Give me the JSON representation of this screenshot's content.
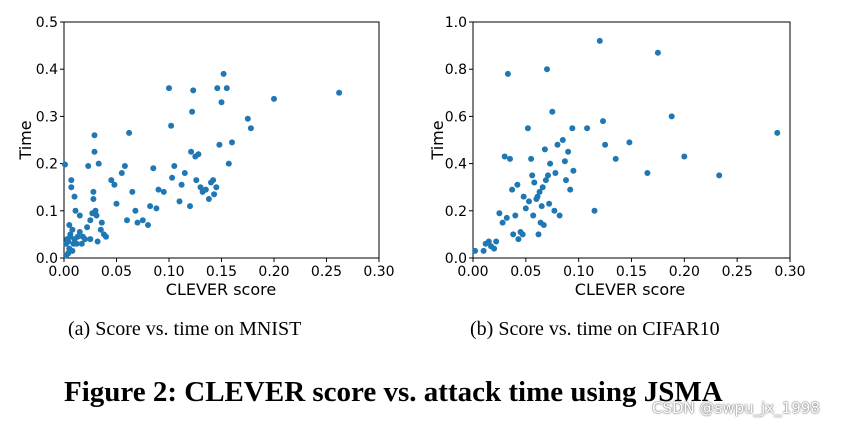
{
  "colors": {
    "points": "#1f77b4",
    "axes": "#000000"
  },
  "chart_data": [
    {
      "type": "scatter",
      "panel": "a",
      "title": "",
      "xlabel": "CLEVER score",
      "ylabel": "Time",
      "xlim": [
        0,
        0.3
      ],
      "ylim": [
        0,
        0.5
      ],
      "xticks": [
        "0.00",
        "0.05",
        "0.10",
        "0.15",
        "0.20",
        "0.25",
        "0.30"
      ],
      "yticks": [
        "0.0",
        "0.1",
        "0.2",
        "0.3",
        "0.4",
        "0.5"
      ],
      "points": [
        [
          0.001,
          0.198
        ],
        [
          0.002,
          0.005
        ],
        [
          0.003,
          0.04
        ],
        [
          0.004,
          0.035
        ],
        [
          0.005,
          0.07
        ],
        [
          0.005,
          0.02
        ],
        [
          0.006,
          0.05
        ],
        [
          0.006,
          0.045
        ],
        [
          0.007,
          0.15
        ],
        [
          0.007,
          0.165
        ],
        [
          0.008,
          0.06
        ],
        [
          0.008,
          0.015
        ],
        [
          0.009,
          0.03
        ],
        [
          0.01,
          0.04
        ],
        [
          0.01,
          0.13
        ],
        [
          0.011,
          0.1
        ],
        [
          0.012,
          0.03
        ],
        [
          0.013,
          0.045
        ],
        [
          0.015,
          0.055
        ],
        [
          0.015,
          0.09
        ],
        [
          0.017,
          0.03
        ],
        [
          0.018,
          0.045
        ],
        [
          0.02,
          0.04
        ],
        [
          0.002,
          0.03
        ],
        [
          0.004,
          0.01
        ],
        [
          0.022,
          0.065
        ],
        [
          0.023,
          0.195
        ],
        [
          0.025,
          0.08
        ],
        [
          0.025,
          0.04
        ],
        [
          0.027,
          0.095
        ],
        [
          0.028,
          0.125
        ],
        [
          0.028,
          0.14
        ],
        [
          0.029,
          0.26
        ],
        [
          0.029,
          0.225
        ],
        [
          0.03,
          0.1
        ],
        [
          0.031,
          0.09
        ],
        [
          0.032,
          0.035
        ],
        [
          0.033,
          0.2
        ],
        [
          0.035,
          0.06
        ],
        [
          0.036,
          0.075
        ],
        [
          0.038,
          0.05
        ],
        [
          0.04,
          0.045
        ],
        [
          0.045,
          0.165
        ],
        [
          0.048,
          0.155
        ],
        [
          0.05,
          0.115
        ],
        [
          0.055,
          0.18
        ],
        [
          0.058,
          0.195
        ],
        [
          0.06,
          0.08
        ],
        [
          0.062,
          0.265
        ],
        [
          0.065,
          0.14
        ],
        [
          0.068,
          0.1
        ],
        [
          0.07,
          0.075
        ],
        [
          0.075,
          0.08
        ],
        [
          0.08,
          0.07
        ],
        [
          0.082,
          0.11
        ],
        [
          0.085,
          0.19
        ],
        [
          0.088,
          0.105
        ],
        [
          0.09,
          0.145
        ],
        [
          0.095,
          0.14
        ],
        [
          0.1,
          0.36
        ],
        [
          0.102,
          0.28
        ],
        [
          0.103,
          0.17
        ],
        [
          0.105,
          0.195
        ],
        [
          0.11,
          0.12
        ],
        [
          0.112,
          0.155
        ],
        [
          0.115,
          0.18
        ],
        [
          0.12,
          0.11
        ],
        [
          0.121,
          0.225
        ],
        [
          0.122,
          0.31
        ],
        [
          0.123,
          0.355
        ],
        [
          0.125,
          0.215
        ],
        [
          0.126,
          0.165
        ],
        [
          0.128,
          0.22
        ],
        [
          0.13,
          0.15
        ],
        [
          0.132,
          0.14
        ],
        [
          0.135,
          0.145
        ],
        [
          0.138,
          0.125
        ],
        [
          0.14,
          0.16
        ],
        [
          0.142,
          0.165
        ],
        [
          0.143,
          0.135
        ],
        [
          0.145,
          0.15
        ],
        [
          0.146,
          0.36
        ],
        [
          0.148,
          0.24
        ],
        [
          0.15,
          0.33
        ],
        [
          0.152,
          0.39
        ],
        [
          0.155,
          0.36
        ],
        [
          0.157,
          0.2
        ],
        [
          0.16,
          0.245
        ],
        [
          0.175,
          0.295
        ],
        [
          0.178,
          0.275
        ],
        [
          0.2,
          0.337
        ],
        [
          0.262,
          0.35
        ]
      ]
    },
    {
      "type": "scatter",
      "panel": "b",
      "title": "",
      "xlabel": "CLEVER score",
      "ylabel": "Time",
      "xlim": [
        0,
        0.3
      ],
      "ylim": [
        0,
        1.0
      ],
      "xticks": [
        "0.00",
        "0.05",
        "0.10",
        "0.15",
        "0.20",
        "0.25",
        "0.30"
      ],
      "yticks": [
        "0.0",
        "0.2",
        "0.4",
        "0.6",
        "0.8",
        "1.0"
      ],
      "points": [
        [
          0.002,
          0.03
        ],
        [
          0.01,
          0.03
        ],
        [
          0.012,
          0.06
        ],
        [
          0.015,
          0.07
        ],
        [
          0.017,
          0.05
        ],
        [
          0.02,
          0.04
        ],
        [
          0.022,
          0.07
        ],
        [
          0.025,
          0.19
        ],
        [
          0.028,
          0.15
        ],
        [
          0.03,
          0.43
        ],
        [
          0.032,
          0.17
        ],
        [
          0.033,
          0.78
        ],
        [
          0.035,
          0.42
        ],
        [
          0.037,
          0.29
        ],
        [
          0.038,
          0.1
        ],
        [
          0.04,
          0.18
        ],
        [
          0.042,
          0.31
        ],
        [
          0.043,
          0.08
        ],
        [
          0.045,
          0.11
        ],
        [
          0.047,
          0.1
        ],
        [
          0.048,
          0.26
        ],
        [
          0.05,
          0.21
        ],
        [
          0.052,
          0.55
        ],
        [
          0.053,
          0.24
        ],
        [
          0.055,
          0.42
        ],
        [
          0.056,
          0.35
        ],
        [
          0.057,
          0.18
        ],
        [
          0.058,
          0.32
        ],
        [
          0.06,
          0.25
        ],
        [
          0.061,
          0.26
        ],
        [
          0.062,
          0.1
        ],
        [
          0.063,
          0.28
        ],
        [
          0.064,
          0.15
        ],
        [
          0.065,
          0.22
        ],
        [
          0.066,
          0.3
        ],
        [
          0.067,
          0.14
        ],
        [
          0.068,
          0.46
        ],
        [
          0.069,
          0.33
        ],
        [
          0.07,
          0.8
        ],
        [
          0.071,
          0.35
        ],
        [
          0.072,
          0.23
        ],
        [
          0.073,
          0.4
        ],
        [
          0.075,
          0.62
        ],
        [
          0.077,
          0.2
        ],
        [
          0.078,
          0.36
        ],
        [
          0.08,
          0.48
        ],
        [
          0.082,
          0.18
        ],
        [
          0.085,
          0.5
        ],
        [
          0.087,
          0.41
        ],
        [
          0.088,
          0.33
        ],
        [
          0.09,
          0.45
        ],
        [
          0.092,
          0.29
        ],
        [
          0.094,
          0.55
        ],
        [
          0.095,
          0.37
        ],
        [
          0.108,
          0.55
        ],
        [
          0.115,
          0.2
        ],
        [
          0.12,
          0.92
        ],
        [
          0.123,
          0.58
        ],
        [
          0.125,
          0.48
        ],
        [
          0.135,
          0.42
        ],
        [
          0.148,
          0.49
        ],
        [
          0.165,
          0.36
        ],
        [
          0.175,
          0.87
        ],
        [
          0.188,
          0.6
        ],
        [
          0.2,
          0.43
        ],
        [
          0.233,
          0.35
        ],
        [
          0.288,
          0.53
        ]
      ]
    }
  ],
  "captions": {
    "a": "(a)  Score vs. time on MNIST",
    "b": "(b)  Score vs. time on CIFAR10"
  },
  "figure_caption": "Figure 2: CLEVER score vs. attack time using JSMA",
  "watermark": "CSDN @swpu_jx_1998"
}
